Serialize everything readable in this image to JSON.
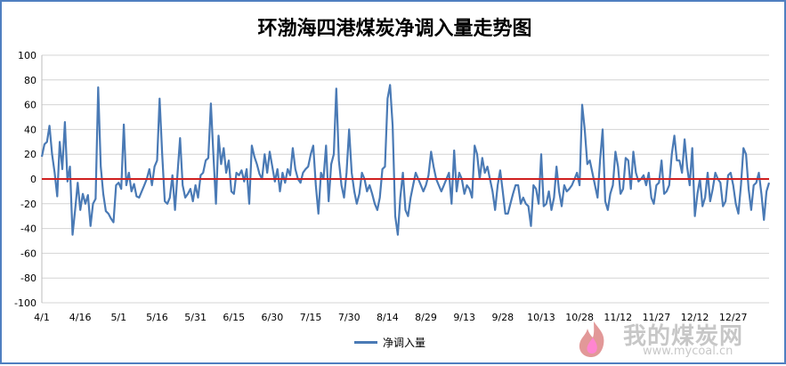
{
  "chart_data": {
    "type": "line",
    "title": "环渤海四港煤炭净调入量走势图",
    "ylim": [
      -100,
      100
    ],
    "y_ticks": [
      "100",
      "80",
      "60",
      "40",
      "20",
      "0",
      "-20",
      "-40",
      "-60",
      "-80",
      "-100"
    ],
    "x_tick_labels": [
      "4/1",
      "4/16",
      "5/1",
      "5/16",
      "5/31",
      "6/15",
      "6/30",
      "7/15",
      "7/30",
      "8/14",
      "8/29",
      "9/13",
      "9/28",
      "10/13",
      "10/28",
      "11/12",
      "11/27",
      "12/12",
      "12/27"
    ],
    "grid": true,
    "legend_position": "bottom",
    "zero_line_color": "#d02020",
    "series": [
      {
        "name": "净调入量",
        "color": "#4a7ab5",
        "values": [
          18,
          28,
          30,
          43,
          20,
          5,
          -14,
          30,
          8,
          46,
          -2,
          10,
          -45,
          -25,
          -3,
          -25,
          -12,
          -20,
          -13,
          -38,
          -20,
          -16,
          74,
          10,
          -12,
          -26,
          -28,
          -32,
          -35,
          -5,
          -3,
          -8,
          44,
          -5,
          5,
          -10,
          -4,
          -14,
          -15,
          -10,
          -5,
          0,
          8,
          -5,
          10,
          15,
          65,
          20,
          -18,
          -20,
          -15,
          3,
          -25,
          5,
          33,
          -5,
          -15,
          -12,
          -8,
          -18,
          -5,
          -15,
          3,
          5,
          15,
          17,
          61,
          20,
          -20,
          35,
          12,
          25,
          5,
          15,
          -10,
          -12,
          5,
          3,
          7,
          -2,
          8,
          -20,
          27,
          18,
          12,
          4,
          0,
          20,
          5,
          22,
          10,
          -2,
          8,
          -10,
          5,
          -3,
          8,
          3,
          25,
          8,
          0,
          -3,
          5,
          8,
          10,
          20,
          27,
          -5,
          -28,
          5,
          0,
          27,
          -18,
          12,
          20,
          73,
          15,
          -5,
          -15,
          5,
          40,
          5,
          -10,
          -20,
          -12,
          5,
          0,
          -10,
          -5,
          -12,
          -20,
          -25,
          -15,
          8,
          10,
          65,
          76,
          43,
          -30,
          -45,
          -15,
          5,
          -25,
          -30,
          -15,
          -5,
          5,
          0,
          -5,
          -10,
          -5,
          3,
          22,
          10,
          0,
          -5,
          -10,
          -5,
          0,
          5,
          -20,
          23,
          -10,
          5,
          0,
          -12,
          -5,
          -8,
          -15,
          27,
          20,
          0,
          17,
          5,
          10,
          0,
          -10,
          -25,
          -5,
          7,
          -10,
          -28,
          -28,
          -20,
          -12,
          -5,
          -5,
          -20,
          -15,
          -20,
          -22,
          -38,
          -5,
          -8,
          -20,
          20,
          -22,
          -20,
          -10,
          -25,
          -15,
          10,
          -10,
          -22,
          -5,
          -10,
          -8,
          -5,
          0,
          5,
          -5,
          60,
          40,
          12,
          15,
          5,
          -5,
          -15,
          15,
          40,
          -18,
          -25,
          -12,
          -5,
          22,
          10,
          -12,
          -8,
          17,
          15,
          -8,
          22,
          5,
          -2,
          0,
          3,
          -5,
          5,
          -15,
          -20,
          -5,
          -3,
          15,
          -12,
          -10,
          -5,
          20,
          35,
          15,
          15,
          5,
          32,
          10,
          -5,
          25,
          -30,
          -12,
          0,
          -22,
          -15,
          5,
          -18,
          -8,
          5,
          0,
          -3,
          -22,
          -18,
          3,
          5,
          -5,
          -20,
          -28,
          -5,
          25,
          20,
          -8,
          -25,
          -5,
          -3,
          5,
          -12,
          -33,
          -10,
          -3
        ]
      }
    ]
  },
  "watermark": {
    "logo_text": "我的煤炭网",
    "url": "www.mycoal.cn"
  }
}
